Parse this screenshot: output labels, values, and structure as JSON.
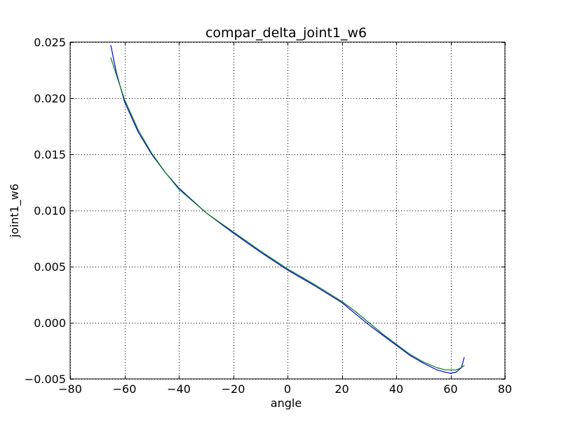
{
  "chart_data": {
    "type": "line",
    "title": "compar_delta_joint1_w6",
    "xlabel": "angle",
    "ylabel": "joint1_w6",
    "xlim": [
      -80,
      80
    ],
    "ylim": [
      -0.005,
      0.025
    ],
    "xticks": [
      -80,
      -60,
      -40,
      -20,
      0,
      20,
      40,
      60,
      80
    ],
    "xtick_labels": [
      "−80",
      "−60",
      "−40",
      "−20",
      "0",
      "20",
      "40",
      "60",
      "80"
    ],
    "yticks": [
      -0.005,
      0.0,
      0.005,
      0.01,
      0.015,
      0.02,
      0.025
    ],
    "ytick_labels": [
      "−0.005",
      "0.000",
      "0.005",
      "0.010",
      "0.015",
      "0.020",
      "0.025"
    ],
    "grid": true,
    "series": [
      {
        "color": "#0000ff",
        "x": [
          -65,
          -63,
          -60,
          -55,
          -50,
          -45,
          -40,
          -30,
          -20,
          -10,
          0,
          10,
          20,
          25,
          30,
          35,
          40,
          45,
          50,
          55,
          58,
          60,
          62,
          64,
          65
        ],
        "y": [
          0.0247,
          0.0223,
          0.0197,
          0.017,
          0.015,
          0.0134,
          0.012,
          0.0098,
          0.008,
          0.0063,
          0.0047,
          0.0033,
          0.0018,
          0.0008,
          -0.0002,
          -0.0011,
          -0.002,
          -0.0029,
          -0.0036,
          -0.0042,
          -0.0044,
          -0.0045,
          -0.0044,
          -0.004,
          -0.0031
        ]
      },
      {
        "color": "#008000",
        "x": [
          -65,
          -63,
          -60,
          -55,
          -50,
          -45,
          -40,
          -30,
          -20,
          -10,
          0,
          10,
          20,
          25,
          30,
          35,
          40,
          45,
          50,
          55,
          58,
          60,
          62,
          64,
          65
        ],
        "y": [
          0.0236,
          0.0221,
          0.0199,
          0.0172,
          0.0151,
          0.0134,
          0.0119,
          0.0098,
          0.0081,
          0.0064,
          0.0048,
          0.0034,
          0.0019,
          0.001,
          0.0,
          -0.001,
          -0.0019,
          -0.0028,
          -0.0035,
          -0.004,
          -0.0042,
          -0.0042,
          -0.0042,
          -0.004,
          -0.0038
        ]
      }
    ]
  }
}
